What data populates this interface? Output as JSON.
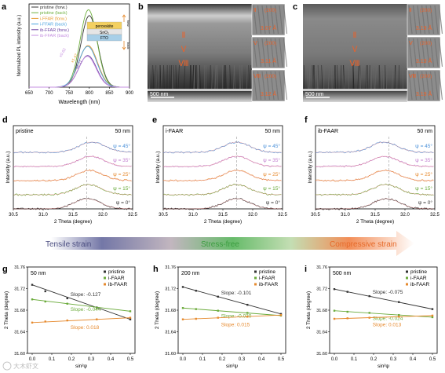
{
  "panel_a": {
    "letter": "a",
    "chart_data": {
      "type": "line",
      "xlabel": "Wavelength (nm)",
      "ylabel": "Normalized PL intensity (a.u.)",
      "xlim": [
        650,
        900
      ],
      "xticks": [
        "650",
        "700",
        "750",
        "800",
        "850",
        "900"
      ],
      "series": [
        {
          "name": "pristine (forw.)",
          "color": "#333333",
          "peak": 800,
          "height": 0.86,
          "sigma": 21
        },
        {
          "name": "pristine (back)",
          "color": "#70b040",
          "peak": 798,
          "height": 0.93,
          "sigma": 21
        },
        {
          "name": "i-FFAR (forw.)",
          "color": "#e69a2e",
          "peak": 797,
          "height": 0.5,
          "sigma": 23
        },
        {
          "name": "i-FFAR (back)",
          "color": "#4aa3df",
          "peak": 796,
          "height": 0.49,
          "sigma": 23
        },
        {
          "name": "ib-FFAR (forw.)",
          "color": "#6b3fa0",
          "peak": 796,
          "height": 0.38,
          "sigma": 22
        },
        {
          "name": "ib-FFAR (back)",
          "color": "#c58fe0",
          "peak": 795,
          "height": 0.37,
          "sigma": 22
        }
      ],
      "annotations": [
        "x0.62",
        "x1.47",
        "x2.11"
      ]
    },
    "inset": {
      "top": "perovskite",
      "mid": "SnO₂",
      "bottom": "FTO",
      "arrow_top": "forw.",
      "arrow_bottom": "back"
    }
  },
  "panel_b": {
    "letter": "b",
    "scalebar": "500 nm",
    "layers": [
      "Ⅱ",
      "Ⅴ",
      "Ⅷ"
    ],
    "insets": [
      {
        "plane": "(200)",
        "d": "3.07 Å",
        "num": "Ⅱ"
      },
      {
        "plane": "(200)",
        "d": "3.11 Å",
        "num": "Ⅴ"
      },
      {
        "plane": "(200)",
        "d": "3.12 Å",
        "num": "Ⅷ"
      }
    ]
  },
  "panel_c": {
    "letter": "c",
    "scalebar": "500 nm",
    "layers": [
      "Ⅱ",
      "Ⅴ",
      "Ⅷ"
    ],
    "insets": [
      {
        "plane": "(200)",
        "d": "3.19 Å",
        "num": "Ⅱ"
      },
      {
        "plane": "(200)",
        "d": "3.19 Å",
        "num": "Ⅴ"
      },
      {
        "plane": "(200)",
        "d": "3.19 Å",
        "num": "Ⅷ"
      }
    ]
  },
  "xrd_panels": [
    {
      "letter": "d",
      "sample": "pristine",
      "depth": "50 nm",
      "peaks": [
        31.82,
        31.8,
        31.78,
        31.76,
        31.74
      ]
    },
    {
      "letter": "e",
      "sample": "i-FAAR",
      "depth": "50 nm",
      "peaks": [
        31.73,
        31.73,
        31.73,
        31.73,
        31.73
      ]
    },
    {
      "letter": "f",
      "sample": "ib-FAAR",
      "depth": "50 nm",
      "peaks": [
        31.65,
        31.66,
        31.67,
        31.68,
        31.69
      ]
    }
  ],
  "xrd_common": {
    "xlabel": "2 Theta (degree)",
    "ylabel": "Intensity (a.u.)",
    "xticks": [
      "30.5",
      "31.0",
      "31.5",
      "32.0",
      "32.5"
    ],
    "xlim": [
      30.5,
      32.5
    ],
    "psi_labels": [
      "ψ = 45°",
      "ψ = 35°",
      "ψ = 25°",
      "ψ = 15°",
      "ψ = 0°"
    ],
    "psi_colors": [
      "#4a90d9",
      "#c07ccf",
      "#e68a2e",
      "#6aaa3a",
      "#333333"
    ]
  },
  "strain_bar": {
    "left": "Tensile strain",
    "middle": "Stress-free",
    "right": "Compressive strain",
    "left_color": "#5b5f97",
    "middle_color": "#4caf50",
    "right_color": "#f07a3a"
  },
  "strain_panels": [
    {
      "letter": "g",
      "depth": "50 nm",
      "chart_data": {
        "type": "scatter",
        "xlabel": "sin²ψ",
        "ylabel": "2 Theta (degree)",
        "xlim": [
          0,
          0.5
        ],
        "ylim": [
          31.6,
          31.76
        ],
        "yticks": [
          "31.60",
          "31.64",
          "31.68",
          "31.72",
          "31.76"
        ],
        "xticks": [
          "0.0",
          "0.1",
          "0.2",
          "0.3",
          "0.4",
          "0.5"
        ],
        "series": [
          {
            "name": "pristine",
            "color": "#333333",
            "slope": -0.127,
            "label": "Slope: -0.127",
            "points": [
              [
                0,
                31.727
              ],
              [
                0.067,
                31.715
              ],
              [
                0.179,
                31.702
              ],
              [
                0.329,
                31.685
              ],
              [
                0.5,
                31.663
              ]
            ]
          },
          {
            "name": "i-FAAR",
            "color": "#6aaa3a",
            "slope": -0.044,
            "label": "Slope: -0.044",
            "points": [
              [
                0,
                31.7
              ],
              [
                0.067,
                31.696
              ],
              [
                0.179,
                31.692
              ],
              [
                0.329,
                31.684
              ],
              [
                0.5,
                31.678
              ]
            ]
          },
          {
            "name": "ib-FAAR",
            "color": "#e68a2e",
            "slope": 0.018,
            "label": "Slope: 0.018",
            "points": [
              [
                0,
                31.657
              ],
              [
                0.067,
                31.659
              ],
              [
                0.179,
                31.661
              ],
              [
                0.329,
                31.663
              ],
              [
                0.5,
                31.666
              ]
            ]
          }
        ]
      }
    },
    {
      "letter": "h",
      "depth": "200 nm",
      "chart_data": {
        "type": "scatter",
        "xlabel": "sin²ψ",
        "ylabel": "2 Theta (degree)",
        "xlim": [
          0,
          0.5
        ],
        "ylim": [
          31.6,
          31.76
        ],
        "yticks": [
          "31.60",
          "31.64",
          "31.68",
          "31.72",
          "31.76"
        ],
        "xticks": [
          "0.0",
          "0.1",
          "0.2",
          "0.3",
          "0.4",
          "0.5"
        ],
        "series": [
          {
            "name": "pristine",
            "color": "#333333",
            "slope": -0.101,
            "label": "Slope: -0.101",
            "points": [
              [
                0,
                31.723
              ],
              [
                0.067,
                31.716
              ],
              [
                0.179,
                31.705
              ],
              [
                0.329,
                31.69
              ],
              [
                0.5,
                31.673
              ]
            ]
          },
          {
            "name": "i-FAAR",
            "color": "#6aaa3a",
            "slope": -0.03,
            "label": "Slope: -0.030",
            "points": [
              [
                0,
                31.684
              ],
              [
                0.067,
                31.682
              ],
              [
                0.179,
                31.679
              ],
              [
                0.329,
                31.675
              ],
              [
                0.5,
                31.67
              ]
            ]
          },
          {
            "name": "ib-FAAR",
            "color": "#e68a2e",
            "slope": 0.015,
            "label": "Slope: 0.015",
            "points": [
              [
                0,
                31.663
              ],
              [
                0.067,
                31.664
              ],
              [
                0.179,
                31.666
              ],
              [
                0.329,
                31.668
              ],
              [
                0.5,
                31.671
              ]
            ]
          }
        ]
      }
    },
    {
      "letter": "i",
      "depth": "500 nm",
      "chart_data": {
        "type": "scatter",
        "xlabel": "sin²ψ",
        "ylabel": "2 Theta (degree)",
        "xlim": [
          0,
          0.5
        ],
        "ylim": [
          31.6,
          31.76
        ],
        "yticks": [
          "31.60",
          "31.64",
          "31.68",
          "31.72",
          "31.76"
        ],
        "xticks": [
          "0.0",
          "0.1",
          "0.2",
          "0.3",
          "0.4",
          "0.5"
        ],
        "series": [
          {
            "name": "pristine",
            "color": "#333333",
            "slope": -0.075,
            "label": "Slope: -0.075",
            "points": [
              [
                0,
                31.719
              ],
              [
                0.067,
                31.714
              ],
              [
                0.179,
                31.706
              ],
              [
                0.329,
                31.695
              ],
              [
                0.5,
                31.682
              ]
            ]
          },
          {
            "name": "i-FAAR",
            "color": "#6aaa3a",
            "slope": -0.024,
            "label": "Slope: -0.024",
            "points": [
              [
                0,
                31.679
              ],
              [
                0.067,
                31.677
              ],
              [
                0.179,
                31.675
              ],
              [
                0.329,
                31.671
              ],
              [
                0.5,
                31.667
              ]
            ]
          },
          {
            "name": "ib-FAAR",
            "color": "#e68a2e",
            "slope": 0.013,
            "label": "Slope: 0.013",
            "points": [
              [
                0,
                31.664
              ],
              [
                0.067,
                31.665
              ],
              [
                0.179,
                31.666
              ],
              [
                0.329,
                31.668
              ],
              [
                0.5,
                31.67
              ]
            ]
          }
        ]
      }
    }
  ],
  "watermark": "大木虾文"
}
